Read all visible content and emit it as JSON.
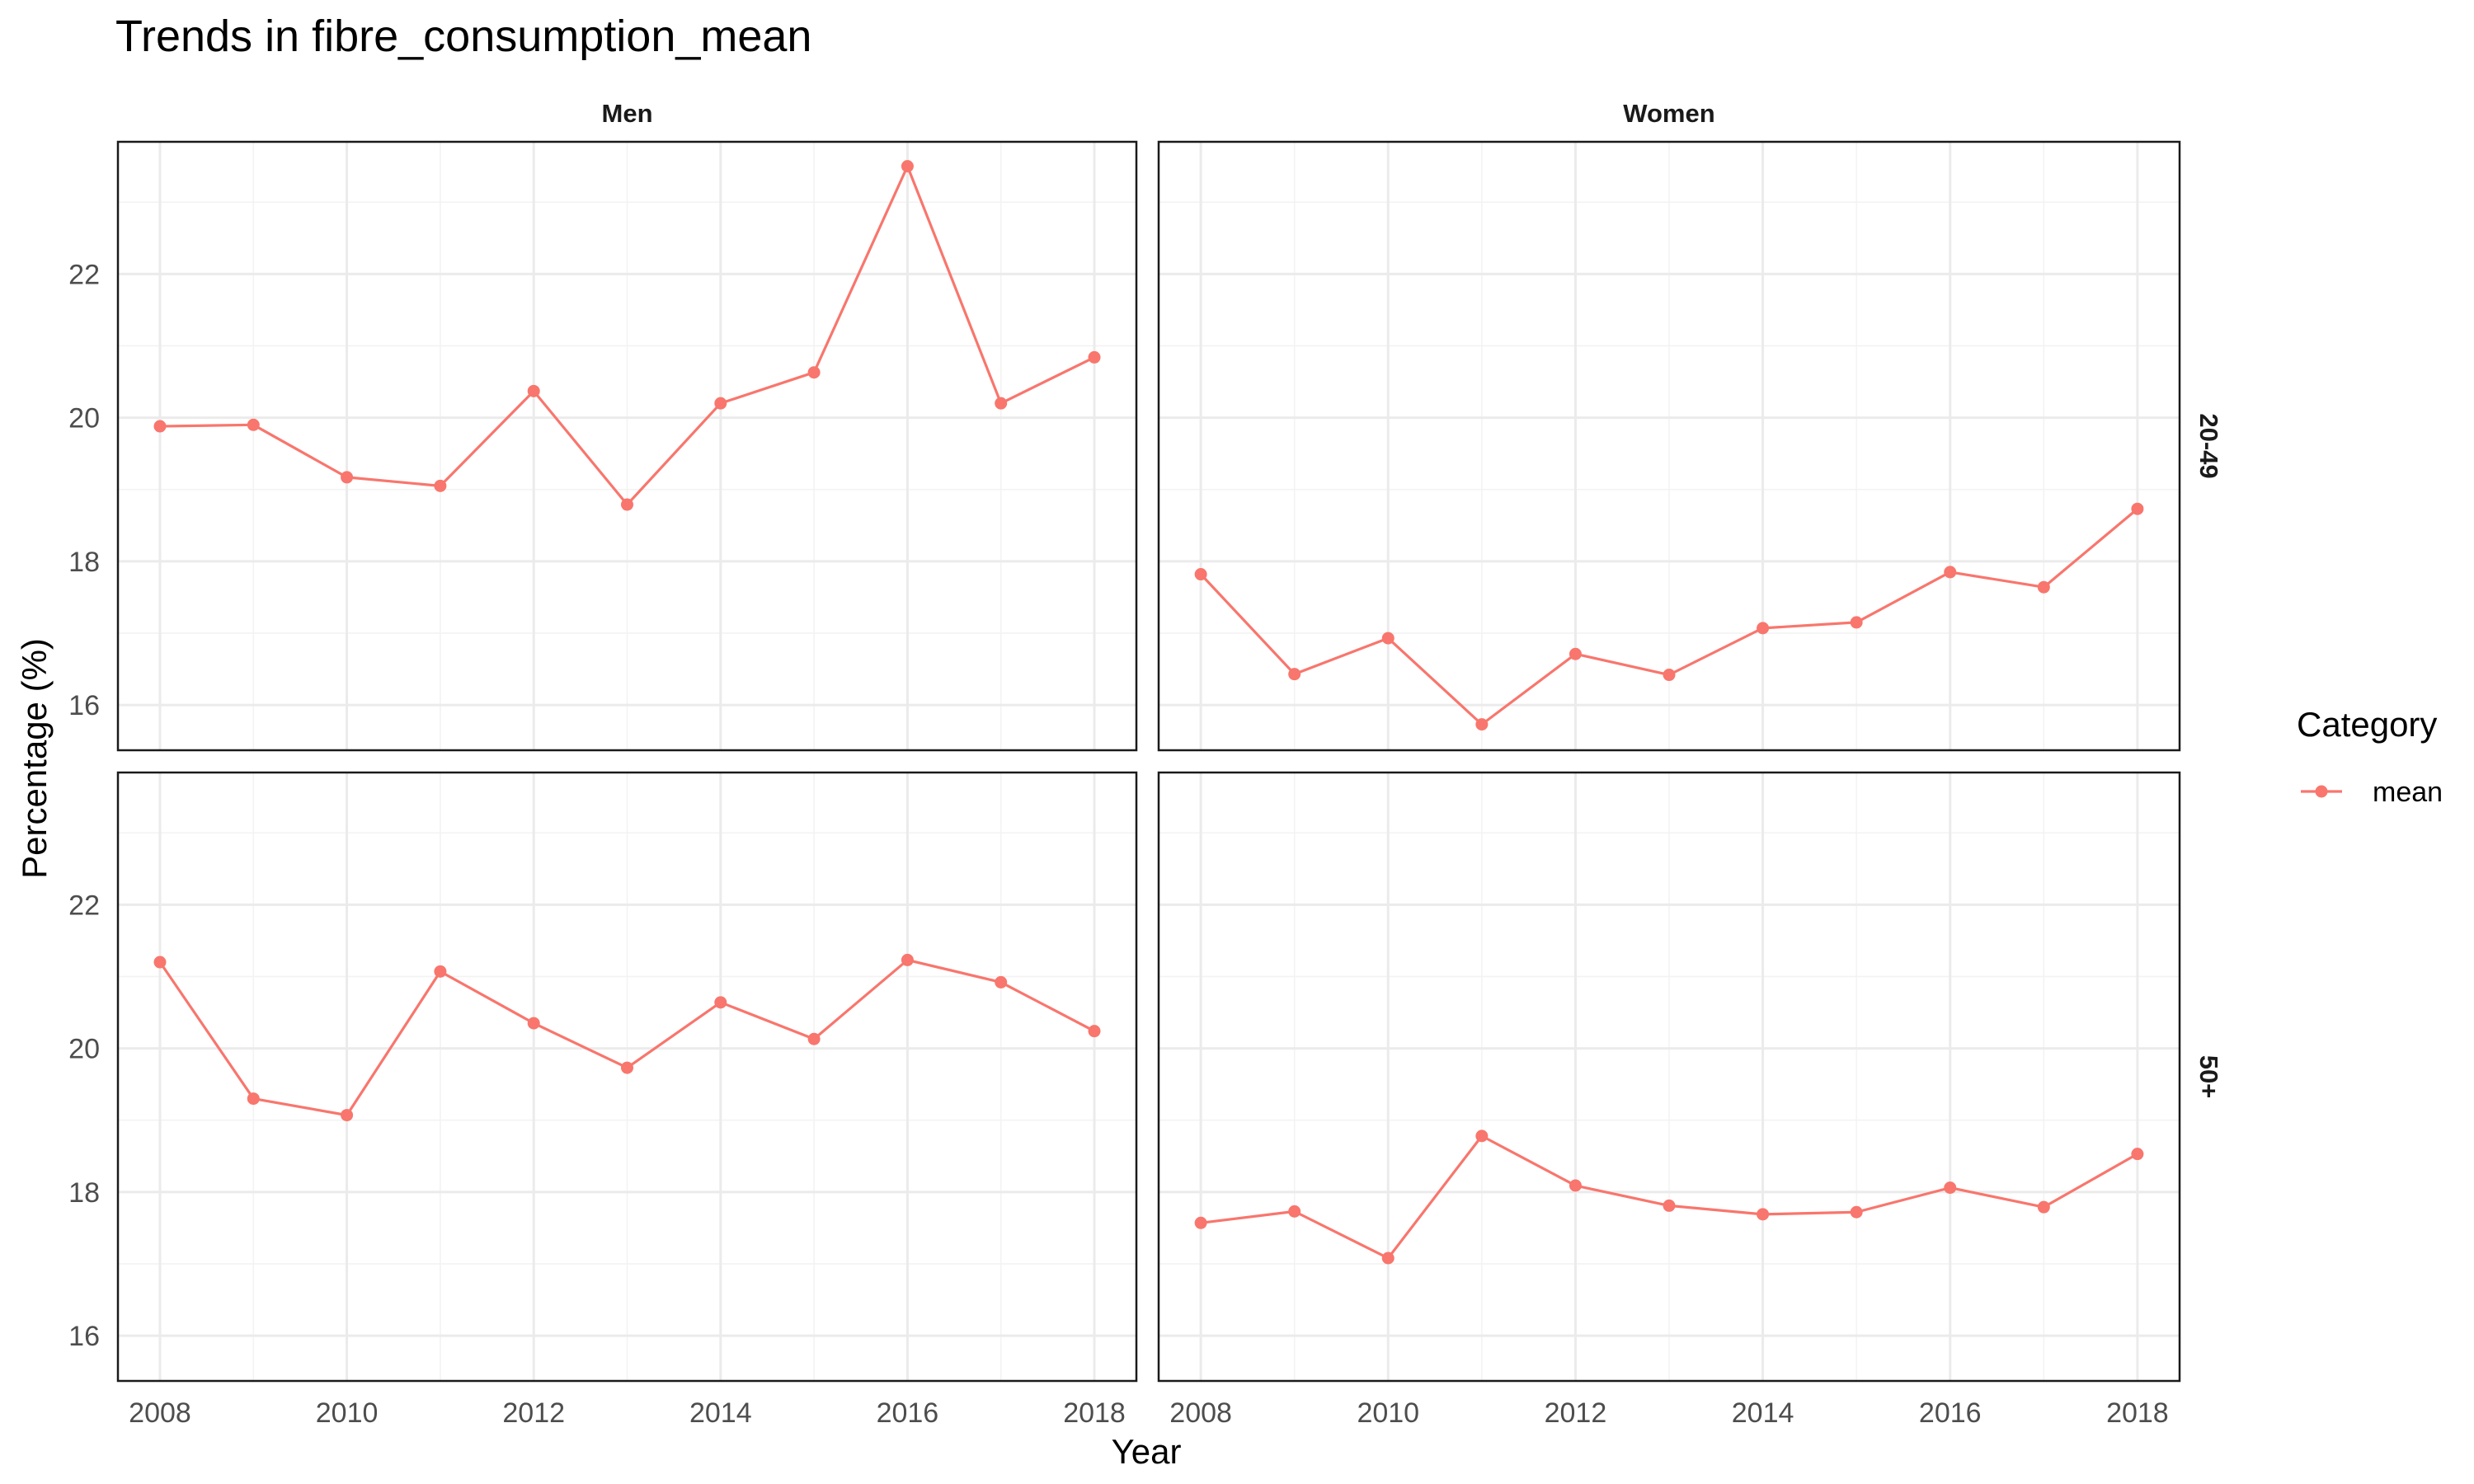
{
  "chart_data": {
    "type": "line",
    "title": "Trends in fibre_consumption_mean",
    "xlabel": "Year",
    "ylabel": "Percentage (%)",
    "xlim": [
      2007.55,
      2018.45
    ],
    "ylim": [
      15.37,
      23.84
    ],
    "x_ticks": [
      2008,
      2010,
      2012,
      2014,
      2016,
      2018
    ],
    "y_ticks": [
      16,
      18,
      20,
      22
    ],
    "facet_cols": [
      "Men",
      "Women"
    ],
    "facet_rows": [
      "20-49",
      "50+"
    ],
    "legend": {
      "title": "Category",
      "position": "right",
      "entries": [
        {
          "label": "mean",
          "color": "#f8766d"
        }
      ]
    },
    "x": [
      2008,
      2009,
      2010,
      2011,
      2012,
      2013,
      2014,
      2015,
      2016,
      2017,
      2018
    ],
    "panels": [
      {
        "col": "Men",
        "row": "20-49",
        "series": [
          {
            "name": "mean",
            "values": [
              19.88,
              19.9,
              19.17,
              19.05,
              20.37,
              18.79,
              20.2,
              20.63,
              23.5,
              20.2,
              20.84
            ]
          }
        ]
      },
      {
        "col": "Women",
        "row": "20-49",
        "series": [
          {
            "name": "mean",
            "values": [
              17.82,
              16.43,
              16.93,
              15.73,
              16.71,
              16.42,
              17.07,
              17.15,
              17.85,
              17.64,
              18.73
            ]
          }
        ]
      },
      {
        "col": "Men",
        "row": "50+",
        "series": [
          {
            "name": "mean",
            "values": [
              21.2,
              19.3,
              19.07,
              21.07,
              20.35,
              19.73,
              20.64,
              20.13,
              21.23,
              20.92,
              20.24
            ]
          }
        ]
      },
      {
        "col": "Women",
        "row": "50+",
        "series": [
          {
            "name": "mean",
            "values": [
              17.57,
              17.73,
              17.08,
              18.78,
              18.09,
              17.81,
              17.69,
              17.72,
              18.06,
              17.79,
              18.53
            ]
          }
        ]
      }
    ],
    "colors": {
      "series": "#f8766d",
      "grid": "#ebebeb",
      "border": "#1a1a1a"
    },
    "grid": true
  }
}
